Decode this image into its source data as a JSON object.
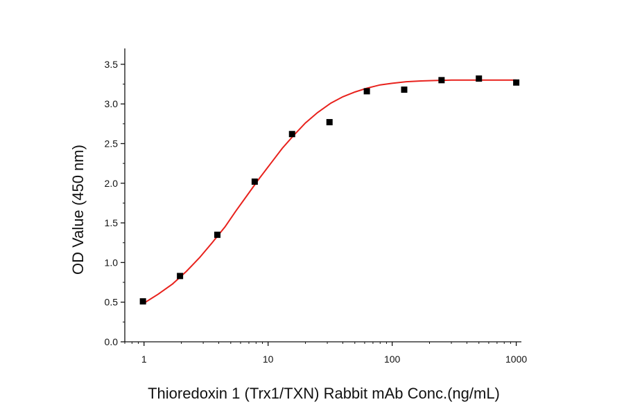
{
  "chart_data": {
    "type": "scatter",
    "x_scale": "log",
    "xlabel": "Thioredoxin 1 (Trx1/TXN) Rabbit mAb Conc.(ng/mL)",
    "ylabel": "OD Value (450 nm)",
    "xlim": [
      0.7,
      1100
    ],
    "ylim": [
      0,
      3.7
    ],
    "x_ticks": [
      1,
      10,
      100,
      1000
    ],
    "x_tick_labels": [
      "1",
      "10",
      "100",
      "1000"
    ],
    "y_ticks": [
      0.0,
      0.5,
      1.0,
      1.5,
      2.0,
      2.5,
      3.0,
      3.5
    ],
    "y_tick_labels": [
      "0.0",
      "0.5",
      "1.0",
      "1.5",
      "2.0",
      "2.5",
      "3.0",
      "3.5"
    ],
    "grid": false,
    "series": [
      {
        "kind": "points",
        "marker": "square",
        "color": "#000000",
        "x": [
          0.98,
          1.95,
          3.9,
          7.8,
          15.6,
          31.25,
          62.5,
          125,
          250,
          500,
          1000
        ],
        "y": [
          0.51,
          0.83,
          1.35,
          2.02,
          2.62,
          2.77,
          3.16,
          3.18,
          3.3,
          3.32,
          3.27
        ]
      },
      {
        "kind": "fit-curve",
        "color": "#e8211c",
        "x": [
          0.98,
          1.3,
          1.7,
          2.2,
          2.8,
          3.5,
          4.5,
          5.5,
          6.8,
          8.5,
          10.5,
          13,
          16,
          20,
          25,
          32,
          40,
          50,
          63,
          80,
          100,
          130,
          170,
          220,
          300,
          400,
          550,
          750,
          1000
        ],
        "y": [
          0.48,
          0.6,
          0.73,
          0.89,
          1.06,
          1.24,
          1.45,
          1.65,
          1.85,
          2.06,
          2.25,
          2.44,
          2.6,
          2.76,
          2.89,
          3.01,
          3.09,
          3.15,
          3.2,
          3.24,
          3.26,
          3.28,
          3.29,
          3.295,
          3.3,
          3.3,
          3.3,
          3.3,
          3.3
        ]
      }
    ]
  }
}
